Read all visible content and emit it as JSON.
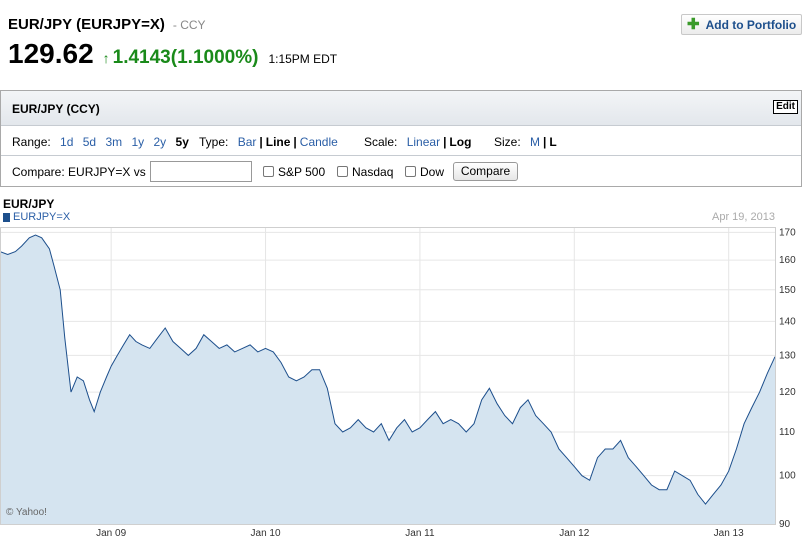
{
  "header": {
    "title": "EUR/JPY (EURJPY=X)",
    "exchange": "- CCY",
    "add_portfolio_label": "Add to Portfolio",
    "price": "129.62",
    "change": "1.4143",
    "change_pct": "(1.1000%)",
    "time": "1:15PM EDT"
  },
  "panel": {
    "title": "EUR/JPY (CCY)",
    "edit_label": "Edit",
    "range": {
      "label": "Range:",
      "options": [
        "1d",
        "5d",
        "3m",
        "1y",
        "2y",
        "5y"
      ],
      "selected": "5y"
    },
    "type": {
      "label": "Type:",
      "options": [
        "Bar",
        "Line",
        "Candle"
      ],
      "selected": "Line"
    },
    "scale": {
      "label": "Scale:",
      "options": [
        "Linear",
        "Log"
      ],
      "selected": "Log"
    },
    "size": {
      "label": "Size:",
      "options": [
        "M",
        "L"
      ],
      "selected": "L"
    },
    "compare": {
      "label": "Compare: EURJPY=X vs",
      "input_value": "",
      "checkboxes": [
        "S&P 500",
        "Nasdaq",
        "Dow"
      ],
      "button_label": "Compare"
    }
  },
  "chart": {
    "title": "EUR/JPY",
    "legend": "EURJPY=X",
    "date": "Apr 19, 2013",
    "copyright": "© Yahoo!"
  },
  "chart_data": {
    "type": "area",
    "title": "EUR/JPY",
    "xlabel": "",
    "ylabel": "",
    "ylim": [
      90,
      172
    ],
    "y_ticks": [
      90,
      100,
      110,
      120,
      130,
      140,
      150,
      160,
      170
    ],
    "x_ticks": [
      "Jan 09",
      "Jan 10",
      "Jan 11",
      "Jan 12",
      "Jan 13"
    ],
    "xlim": [
      2008.28,
      2013.3
    ],
    "grid": true,
    "series": [
      {
        "name": "EURJPY=X",
        "x": [
          2008.28,
          2008.33,
          2008.38,
          2008.42,
          2008.47,
          2008.51,
          2008.55,
          2008.6,
          2008.63,
          2008.67,
          2008.7,
          2008.74,
          2008.78,
          2008.82,
          2008.86,
          2008.89,
          2008.93,
          2008.97,
          2009.0,
          2009.04,
          2009.08,
          2009.12,
          2009.16,
          2009.2,
          2009.25,
          2009.3,
          2009.35,
          2009.4,
          2009.45,
          2009.5,
          2009.55,
          2009.6,
          2009.65,
          2009.7,
          2009.75,
          2009.8,
          2009.85,
          2009.9,
          2009.95,
          2010.0,
          2010.05,
          2010.1,
          2010.15,
          2010.2,
          2010.25,
          2010.3,
          2010.35,
          2010.4,
          2010.45,
          2010.5,
          2010.55,
          2010.6,
          2010.65,
          2010.7,
          2010.75,
          2010.8,
          2010.85,
          2010.9,
          2010.95,
          2011.0,
          2011.05,
          2011.1,
          2011.15,
          2011.2,
          2011.25,
          2011.3,
          2011.35,
          2011.4,
          2011.45,
          2011.5,
          2011.55,
          2011.6,
          2011.65,
          2011.7,
          2011.75,
          2011.8,
          2011.85,
          2011.9,
          2011.95,
          2012.0,
          2012.05,
          2012.1,
          2012.15,
          2012.2,
          2012.25,
          2012.3,
          2012.35,
          2012.4,
          2012.45,
          2012.5,
          2012.55,
          2012.6,
          2012.65,
          2012.7,
          2012.75,
          2012.8,
          2012.85,
          2012.9,
          2012.95,
          2013.0,
          2013.05,
          2013.1,
          2013.15,
          2013.2,
          2013.25,
          2013.3
        ],
        "values": [
          163,
          162,
          163,
          165,
          168,
          169,
          168,
          164,
          158,
          150,
          135,
          120,
          124,
          123,
          118,
          115,
          120,
          124,
          127,
          130,
          133,
          136,
          134,
          133,
          132,
          135,
          138,
          134,
          132,
          130,
          132,
          136,
          134,
          132,
          133,
          131,
          132,
          133,
          131,
          132,
          131,
          128,
          124,
          123,
          124,
          126,
          126,
          121,
          112,
          110,
          111,
          113,
          111,
          110,
          112,
          108,
          111,
          113,
          110,
          111,
          113,
          115,
          112,
          113,
          112,
          110,
          112,
          118,
          121,
          117,
          114,
          112,
          116,
          118,
          114,
          112,
          110,
          106,
          104,
          102,
          100,
          99,
          104,
          106,
          106,
          108,
          104,
          102,
          100,
          98,
          97,
          97,
          101,
          100,
          99,
          96,
          94,
          96,
          98,
          101,
          106,
          112,
          116,
          120,
          125,
          129.62
        ]
      }
    ]
  }
}
